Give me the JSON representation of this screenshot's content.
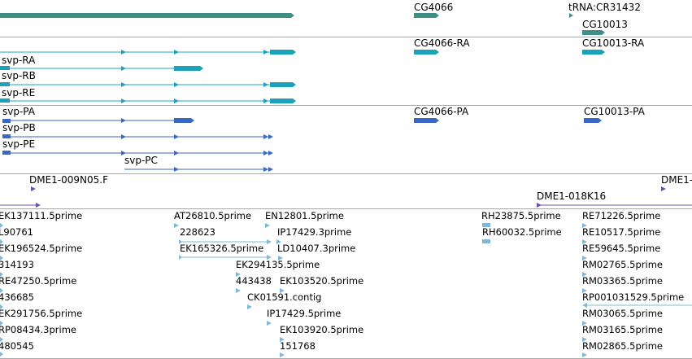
{
  "colors": {
    "gene": "#3f8f87",
    "mrna": "#1aa3b8",
    "protein": "#3867c5",
    "clone": "#6b4fb4",
    "est": "#7fb8d8",
    "divider": "#a9a9a9"
  },
  "tracks": {
    "genes": {
      "labels": [
        "CG4066",
        "tRNA:CR31432",
        "CG10013"
      ]
    },
    "transcripts": {
      "labels": [
        "svp-RA",
        "svp-RB",
        "svp-RE",
        "CG4066-RA",
        "CG10013-RA"
      ]
    },
    "proteins": {
      "labels": [
        "svp-PA",
        "svp-PB",
        "svp-PE",
        "svp-PC",
        "CG4066-PA",
        "CG10013-PA"
      ]
    },
    "clones": {
      "labels": [
        "DME1-009N05.F",
        "DME1-018K16",
        "DME1-"
      ]
    },
    "ests": {
      "labels": [
        "EK137111.5prime",
        "L90761",
        "EK196524.5prime",
        "314193",
        "RE47250.5prime",
        "436685",
        "EK291756.5prime",
        "RP08434.3prime",
        "480545",
        "AT26810.5prime",
        "228623",
        "EK165326.5prime",
        "EN12801.5prime",
        "IP17429.3prime",
        "LD10407.3prime",
        "EK294135.5prime",
        "443438",
        "EK103520.5prime",
        "CK01591.contig",
        "IP17429.5prime",
        "EK103920.5prime",
        "151768",
        "RH23875.5prime",
        "RH60032.5prime",
        "RE71226.5prime",
        "RE10517.5prime",
        "RE59645.5prime",
        "RM02765.5prime",
        "RM03365.5prime",
        "RP001031529.5prime",
        "RM03065.5prime",
        "RM03165.5prime",
        "RM02865.5prime"
      ]
    }
  }
}
